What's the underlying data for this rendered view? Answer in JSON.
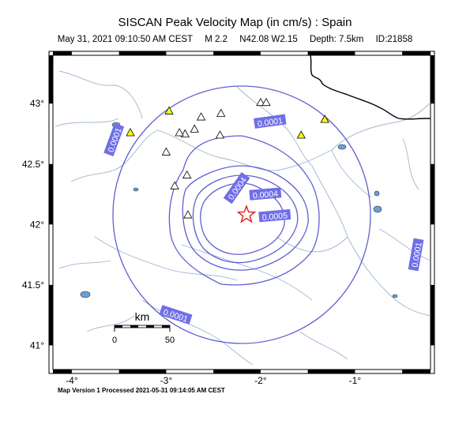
{
  "title": "SISCAN Peak Velocity Map (in cm/s) : Spain",
  "subtitle": {
    "datetime": "May 31, 2021 09:10:50 AM CEST",
    "magnitude": "M 2.2",
    "location": "N42.08 W2.15",
    "depth": "Depth: 7.5km",
    "event_id": "ID:21858"
  },
  "footer": "Map Version 1 Processed 2021-05-31 09:14:05 AM CEST",
  "axes": {
    "x_ticks": [
      "-4°",
      "-3°",
      "-2°",
      "-1°"
    ],
    "y_ticks": [
      "43°",
      "42.5°",
      "42°",
      "41.5°",
      "41°"
    ],
    "x_range": [
      -4.2,
      -0.2
    ],
    "y_range": [
      40.8,
      43.4
    ]
  },
  "scale_bar": {
    "unit": "km",
    "start": "0",
    "end": "50"
  },
  "contour_labels": [
    {
      "text": "0.0001",
      "lon": -1.9,
      "lat": 42.85,
      "angle": -8
    },
    {
      "text": "0.0001",
      "lon": -3.55,
      "lat": 42.7,
      "angle": -70
    },
    {
      "text": "0.0001",
      "lon": -0.35,
      "lat": 41.75,
      "angle": -80
    },
    {
      "text": "0.0001",
      "lon": -2.9,
      "lat": 41.25,
      "angle": 18
    },
    {
      "text": "0.0004",
      "lon": -2.25,
      "lat": 42.3,
      "angle": -55
    },
    {
      "text": "0.0004",
      "lon": -1.95,
      "lat": 42.25,
      "angle": -5
    },
    {
      "text": "0.0005",
      "lon": -1.85,
      "lat": 42.07,
      "angle": -5
    }
  ],
  "epicenter": {
    "lon": -2.15,
    "lat": 42.08,
    "color": "#e31a1c"
  },
  "stations": [
    {
      "lon": -2.97,
      "lat": 42.94,
      "color": "#ffff00"
    },
    {
      "lon": -1.32,
      "lat": 42.87,
      "color": "#ffff00"
    },
    {
      "lon": -1.57,
      "lat": 42.74,
      "color": "#ffff00"
    },
    {
      "lon": -3.38,
      "lat": 42.76,
      "color": "#ffff00"
    },
    {
      "lon": -2.42,
      "lat": 42.92,
      "color": "#ffffff"
    },
    {
      "lon": -2.63,
      "lat": 42.89,
      "color": "#ffffff"
    },
    {
      "lon": -2.0,
      "lat": 43.01,
      "color": "#ffffff"
    },
    {
      "lon": -1.94,
      "lat": 43.01,
      "color": "#ffffff"
    },
    {
      "lon": -2.7,
      "lat": 42.79,
      "color": "#ffffff"
    },
    {
      "lon": -2.8,
      "lat": 42.75,
      "color": "#ffffff"
    },
    {
      "lon": -2.86,
      "lat": 42.76,
      "color": "#ffffff"
    },
    {
      "lon": -2.43,
      "lat": 42.74,
      "color": "#ffffff"
    },
    {
      "lon": -3.0,
      "lat": 42.6,
      "color": "#ffffff"
    },
    {
      "lon": -2.78,
      "lat": 42.41,
      "color": "#ffffff"
    },
    {
      "lon": -2.91,
      "lat": 42.32,
      "color": "#ffffff"
    },
    {
      "lon": -2.77,
      "lat": 42.08,
      "color": "#ffffff"
    }
  ],
  "colors": {
    "contour": "#6060d0",
    "label_fill": "#6f6fe8",
    "river": "#9db7d0",
    "lake": "#6a9fd6",
    "frame": "#000000"
  }
}
